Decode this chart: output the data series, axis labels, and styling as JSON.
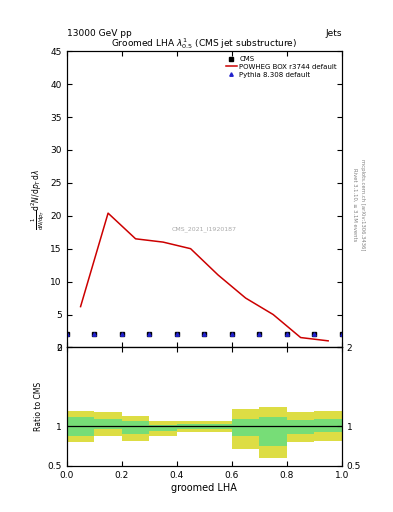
{
  "title": "13000 GeV pp",
  "title_right": "Jets",
  "plot_title": "Groomed LHA $\\lambda^{1}_{0.5}$ (CMS jet substructure)",
  "xlabel": "groomed LHA",
  "ylabel_left": "$\\frac{1}{\\mathrm{d}N / \\mathrm{d}p_{T}} \\mathrm{d}^2N / \\mathrm{d}p_{T}\\,\\mathrm{d}\\lambda$",
  "ylabel_ratio": "Ratio to CMS",
  "right_label1": "Rivet 3.1.10, ≥ 3.1M events",
  "right_label2": "mcplots.cern.ch [arXiv:1306.3436]",
  "watermark": "CMS_2021_I1920187",
  "cms_x": [
    0.0,
    0.1,
    0.2,
    0.3,
    0.4,
    0.5,
    0.6,
    0.7,
    0.8,
    0.9,
    1.0
  ],
  "cms_y": [
    2.0,
    2.0,
    2.0,
    2.0,
    2.0,
    2.0,
    2.0,
    2.0,
    2.0,
    2.0,
    2.0
  ],
  "red_x": [
    0.05,
    0.15,
    0.25,
    0.35,
    0.45,
    0.55,
    0.65,
    0.75,
    0.85,
    0.95
  ],
  "red_y": [
    6.2,
    20.4,
    16.5,
    16.0,
    15.0,
    11.0,
    7.5,
    5.0,
    1.5,
    1.0
  ],
  "blue_x": [
    0.0,
    0.1,
    0.2,
    0.3,
    0.4,
    0.5,
    0.6,
    0.7,
    0.8,
    0.9,
    1.0
  ],
  "blue_y": [
    2.0,
    2.0,
    2.0,
    2.0,
    2.0,
    2.0,
    2.0,
    2.0,
    2.0,
    2.0,
    2.0
  ],
  "ratio_edges": [
    0.0,
    0.1,
    0.2,
    0.3,
    0.4,
    0.5,
    0.6,
    0.7,
    0.8,
    0.9,
    1.0
  ],
  "ratio_green_lo": [
    0.88,
    0.97,
    0.9,
    0.94,
    0.97,
    0.97,
    0.88,
    0.75,
    0.9,
    0.93
  ],
  "ratio_green_hi": [
    1.12,
    1.1,
    1.07,
    1.02,
    1.03,
    1.03,
    1.1,
    1.12,
    1.08,
    1.1
  ],
  "ratio_yellow_lo": [
    0.8,
    0.88,
    0.82,
    0.88,
    0.93,
    0.93,
    0.72,
    0.6,
    0.8,
    0.82
  ],
  "ratio_yellow_hi": [
    1.2,
    1.18,
    1.13,
    1.07,
    1.07,
    1.07,
    1.22,
    1.25,
    1.18,
    1.2
  ],
  "ylim_main": [
    0,
    45
  ],
  "ylim_ratio": [
    0.5,
    2.0
  ],
  "xlim": [
    0.0,
    1.0
  ],
  "bg": "#ffffff",
  "red_color": "#cc0000",
  "blue_color": "#2222cc",
  "black": "#000000",
  "green_color": "#77dd77",
  "yellow_color": "#dddd44"
}
